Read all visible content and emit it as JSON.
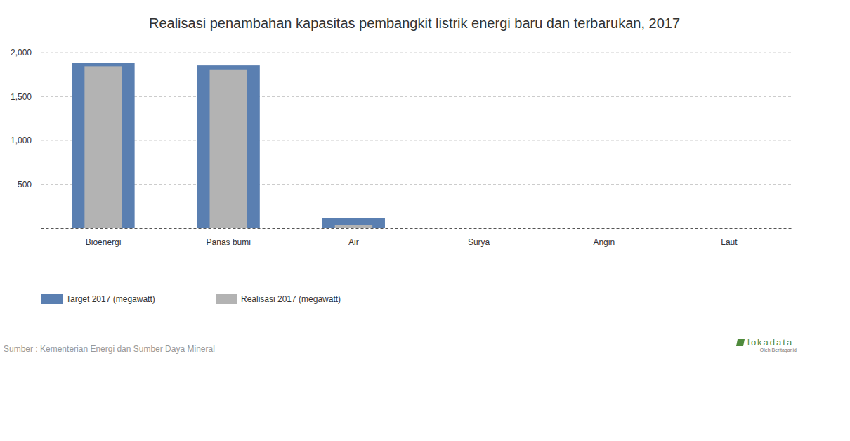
{
  "chart_data": {
    "type": "bar",
    "title": "Realisasi penambahan kapasitas pembangkit listrik energi baru dan terbarukan, 2017",
    "categories": [
      "Bioenergi",
      "Panas bumi",
      "Air",
      "Surya",
      "Angin",
      "Laut"
    ],
    "series": [
      {
        "name": "Target 2017 (megawatt)",
        "color": "#5a7fb1",
        "values": [
          1880,
          1855,
          113,
          8,
          0,
          0
        ]
      },
      {
        "name": "Realisasi 2017 (megawatt)",
        "color": "#b3b3b3",
        "values": [
          1845,
          1810,
          40,
          3,
          0,
          0
        ]
      }
    ],
    "ylim": [
      0,
      2000
    ],
    "yticks": [
      500,
      {
        "value": 1000,
        "label": "1,000"
      },
      {
        "value": 1500,
        "label": "1,500"
      },
      {
        "value": 2000,
        "label": "2,000"
      }
    ],
    "grid": true,
    "legend": "bottom-left",
    "source": "Sumber : Kementerian Energi dan Sumber Daya Mineral",
    "annotations": [
      "lokadata",
      "Oleh Beritagar.id"
    ]
  }
}
